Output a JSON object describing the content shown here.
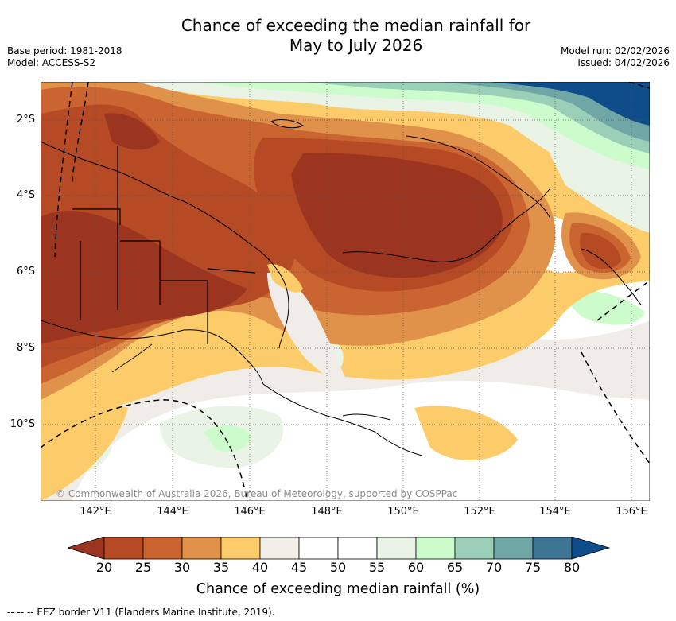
{
  "header": {
    "title_line1": "Chance of exceeding the median rainfall for",
    "title_line2": "May to July 2026",
    "base_period": "Base period: 1981-2018",
    "model": "Model: ACCESS-S2",
    "model_run": "Model run: 02/02/2026",
    "issued": "Issued: 04/02/2026"
  },
  "map": {
    "lat_labels": [
      "2°S",
      "4°S",
      "6°S",
      "8°S",
      "10°S"
    ],
    "lon_labels": [
      "142°E",
      "144°E",
      "146°E",
      "148°E",
      "150°E",
      "152°E",
      "154°E",
      "156°E"
    ],
    "credit": "© Commonwealth of Australia 2026, Bureau of Meteorology, supported by COSPPac",
    "ocean_color": "#f0ede8"
  },
  "colorbar": {
    "ticks": [
      "20",
      "25",
      "30",
      "35",
      "40",
      "45",
      "50",
      "55",
      "60",
      "65",
      "70",
      "75",
      "80"
    ],
    "title": "Chance of exceeding median rainfall (%)",
    "colors": [
      "#9c3520",
      "#b54a24",
      "#ca6431",
      "#e0914a",
      "#fdcc6a",
      "#f2efe8",
      "#ffffff",
      "#ffffff",
      "#e9f4e6",
      "#ccfccc",
      "#9bcfb8",
      "#6fa7a6",
      "#3f7594",
      "#0f4c8a"
    ]
  },
  "footer": {
    "legend": "-- --  -- EEZ border V11 (Flanders Marine Institute, 2019)."
  }
}
